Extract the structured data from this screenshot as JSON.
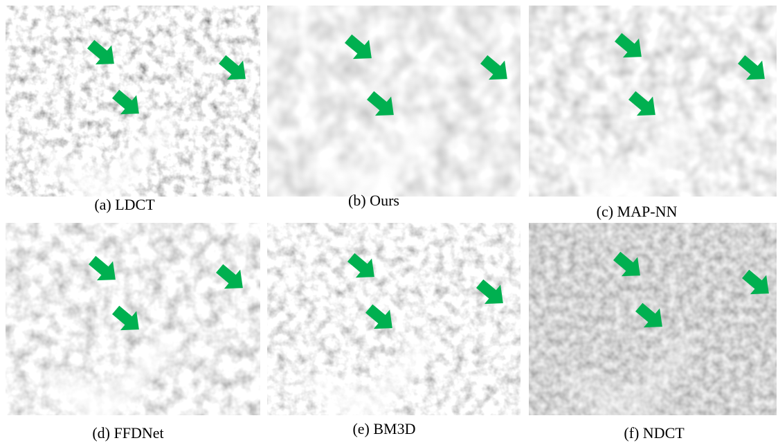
{
  "panels": [
    {
      "caption": "(a) LDCT"
    },
    {
      "caption": "(b) Ours"
    },
    {
      "caption": "(c) MAP-NN"
    },
    {
      "caption": "(d) FFDNet"
    },
    {
      "caption": "(e) BM3D"
    },
    {
      "caption": "(f) NDCT"
    }
  ]
}
